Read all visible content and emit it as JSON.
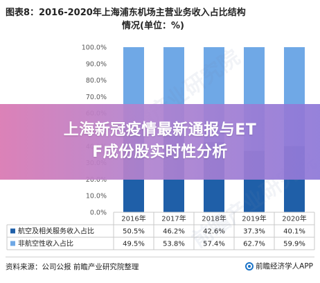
{
  "title": "图表8：2016-2020年上海浦东机场主营业务收入占比结构",
  "subtitle": "情况(单位：%)",
  "banner": {
    "line1": "上海新冠疫情最新通报与ET",
    "line2": "F成份股实时性分析"
  },
  "footer": {
    "source": "资料来源：公司公报 前瞻产业研究院整理",
    "brand": "前瞻经济学人APP",
    "brand_icon": "qianzhan-logo-icon"
  },
  "watermark_text": "前瞻产业研究院",
  "chart_data": {
    "type": "bar",
    "stacked": true,
    "percent": true,
    "categories": [
      "2016年",
      "2017年",
      "2018年",
      "2019年",
      "2020年"
    ],
    "ylim": [
      0,
      100
    ],
    "yticks": [
      "0.0%",
      "10.0%",
      "20.0%",
      "30.0%",
      "40.0%",
      "50.0%",
      "60.0%",
      "70.0%",
      "80.0%",
      "90.0%",
      "100.0%"
    ],
    "grid": false,
    "legend": "table-bottom",
    "series": [
      {
        "name": "航空及相关服务收入占比",
        "values": [
          50.5,
          46.2,
          42.6,
          37.3,
          40.1
        ],
        "labels": [
          "50.5%",
          "46.2%",
          "42.6%",
          "37.3%",
          "40.1%"
        ],
        "color": "#1f5fa8"
      },
      {
        "name": "非航空性收入占比",
        "values": [
          49.5,
          53.8,
          57.4,
          62.7,
          59.9
        ],
        "labels": [
          "49.5%",
          "53.8%",
          "57.4%",
          "62.7%",
          "59.9%"
        ],
        "color": "#6fa8e6"
      }
    ]
  }
}
